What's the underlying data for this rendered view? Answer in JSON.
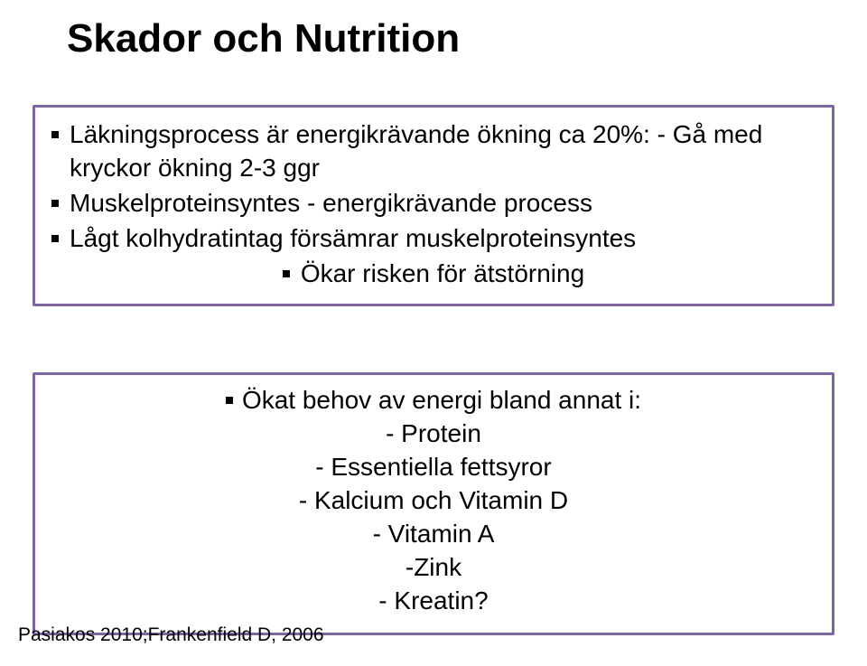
{
  "title": "Skador och Nutrition",
  "box1": {
    "items": [
      "Läkningsprocess är energikrävande ökning ca 20%: - Gå med kryckor ökning 2-3 ggr",
      "Muskelproteinsyntes - energikrävande process",
      "Lågt kolhydratintag försämrar muskelproteinsyntes",
      "Ökar risken för ätstörning"
    ],
    "centered_index": 3
  },
  "box2": {
    "lead_bullet": "Ökat behov av energi bland annat i:",
    "lines": [
      "- Protein",
      "- Essentiella fettsyror",
      "- Kalcium och Vitamin D",
      "-  Vitamin A",
      "-Zink",
      "- Kreatin?"
    ]
  },
  "citation": "Pasiakos 2010;Frankenfield D, 2006",
  "colors": {
    "border": "#8064a2",
    "text": "#000000",
    "background": "#ffffff"
  }
}
